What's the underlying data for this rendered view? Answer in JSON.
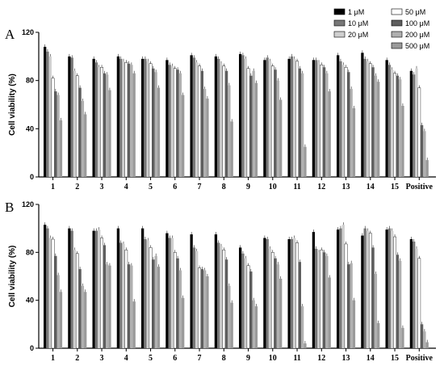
{
  "chart_data": [
    {
      "type": "bar",
      "panel_label": "A",
      "ylabel": "Cell viability (%)",
      "ylim": [
        0,
        120
      ],
      "yticks": [
        0,
        40,
        80,
        120
      ],
      "categories": [
        "1",
        "2",
        "3",
        "4",
        "5",
        "6",
        "7",
        "8",
        "9",
        "10",
        "11",
        "12",
        "13",
        "14",
        "15",
        "Positive"
      ],
      "series": [
        {
          "name": "1 μM",
          "color": "#000000",
          "values": [
            108,
            100,
            98,
            100,
            98,
            97,
            101,
            100,
            102,
            97,
            98,
            97,
            101,
            103,
            97,
            88
          ]
        },
        {
          "name": "10 μM",
          "color": "#777777",
          "values": [
            104,
            99,
            95,
            98,
            98,
            93,
            99,
            98,
            101,
            99,
            100,
            97,
            96,
            98,
            93,
            85
          ]
        },
        {
          "name": "20 μM",
          "color": "#cfcfcf",
          "values": [
            100,
            88,
            91,
            96,
            96,
            92,
            95,
            94,
            98,
            96,
            98,
            95,
            93,
            96,
            89,
            90
          ]
        },
        {
          "name": "50 μM",
          "color": "#ffffff",
          "values": [
            82,
            84,
            91,
            95,
            94,
            90,
            92,
            92,
            90,
            92,
            96,
            93,
            91,
            94,
            86,
            74
          ]
        },
        {
          "name": "100 μM",
          "color": "#5e5e5e",
          "values": [
            71,
            74,
            86,
            94,
            90,
            89,
            88,
            88,
            84,
            89,
            90,
            91,
            87,
            91,
            84,
            43
          ]
        },
        {
          "name": "200 μM",
          "color": "#b0b0b0",
          "values": [
            68,
            63,
            85,
            93,
            87,
            86,
            73,
            76,
            88,
            80,
            86,
            86,
            73,
            84,
            81,
            38
          ]
        },
        {
          "name": "500 μM",
          "color": "#9a9a9a",
          "values": [
            47,
            52,
            72,
            86,
            74,
            68,
            65,
            46,
            78,
            64,
            25,
            71,
            57,
            79,
            59,
            14
          ]
        }
      ]
    },
    {
      "type": "bar",
      "panel_label": "B",
      "ylabel": "Cell viability (%)",
      "ylim": [
        0,
        120
      ],
      "yticks": [
        0,
        40,
        80,
        120
      ],
      "categories": [
        "1",
        "2",
        "3",
        "4",
        "5",
        "6",
        "7",
        "8",
        "9",
        "10",
        "11",
        "12",
        "13",
        "14",
        "15",
        "Positive"
      ],
      "series": [
        {
          "name": "1 μM",
          "color": "#000000",
          "values": [
            103,
            100,
            98,
            100,
            100,
            96,
            95,
            95,
            84,
            92,
            91,
            97,
            99,
            94,
            99,
            91
          ]
        },
        {
          "name": "10 μM",
          "color": "#777777",
          "values": [
            100,
            98,
            98,
            88,
            91,
            92,
            84,
            88,
            79,
            91,
            91,
            83,
            100,
            100,
            100,
            89
          ]
        },
        {
          "name": "20 μM",
          "color": "#cfcfcf",
          "values": [
            92,
            82,
            99,
            87,
            90,
            92,
            81,
            85,
            75,
            83,
            92,
            80,
            103,
            98,
            98,
            83
          ]
        },
        {
          "name": "50 μM",
          "color": "#ffffff",
          "values": [
            91,
            79,
            92,
            82,
            84,
            80,
            67,
            82,
            69,
            80,
            88,
            82,
            87,
            96,
            93,
            75
          ]
        },
        {
          "name": "100 μM",
          "color": "#5e5e5e",
          "values": [
            77,
            66,
            86,
            70,
            74,
            75,
            66,
            74,
            64,
            75,
            72,
            80,
            70,
            84,
            78,
            20
          ]
        },
        {
          "name": "200 μM",
          "color": "#b0b0b0",
          "values": [
            61,
            52,
            70,
            69,
            77,
            65,
            65,
            52,
            40,
            70,
            35,
            77,
            71,
            62,
            73,
            14
          ]
        },
        {
          "name": "500 μM",
          "color": "#9a9a9a",
          "values": [
            47,
            47,
            69,
            39,
            68,
            42,
            60,
            38,
            35,
            58,
            4,
            59,
            40,
            21,
            17,
            5
          ]
        }
      ]
    }
  ]
}
